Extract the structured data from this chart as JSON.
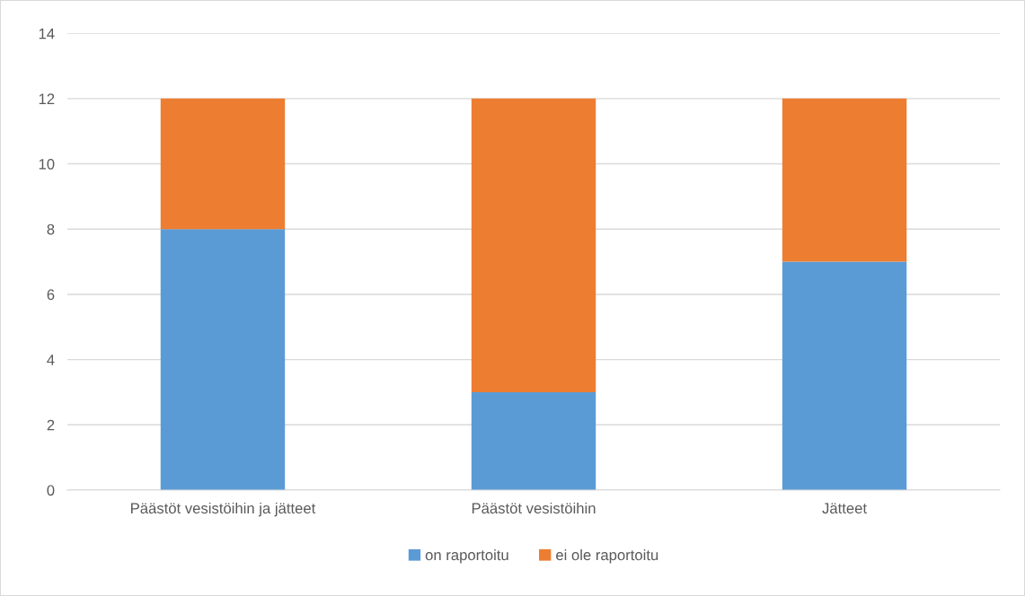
{
  "chart_data": {
    "type": "bar",
    "stacked": true,
    "categories": [
      "Päästöt vesistöihin ja jätteet",
      "Päästöt vesistöihin",
      "Jätteet"
    ],
    "series": [
      {
        "name": "on raportoitu",
        "color": "#5b9bd5",
        "values": [
          8,
          3,
          7
        ]
      },
      {
        "name": "ei ole raportoitu",
        "color": "#ed7d31",
        "values": [
          4,
          9,
          5
        ]
      }
    ],
    "ylim": [
      0,
      14
    ],
    "yticks": [
      0,
      2,
      4,
      6,
      8,
      10,
      12,
      14
    ],
    "grid": "y",
    "legend": "bottom"
  }
}
